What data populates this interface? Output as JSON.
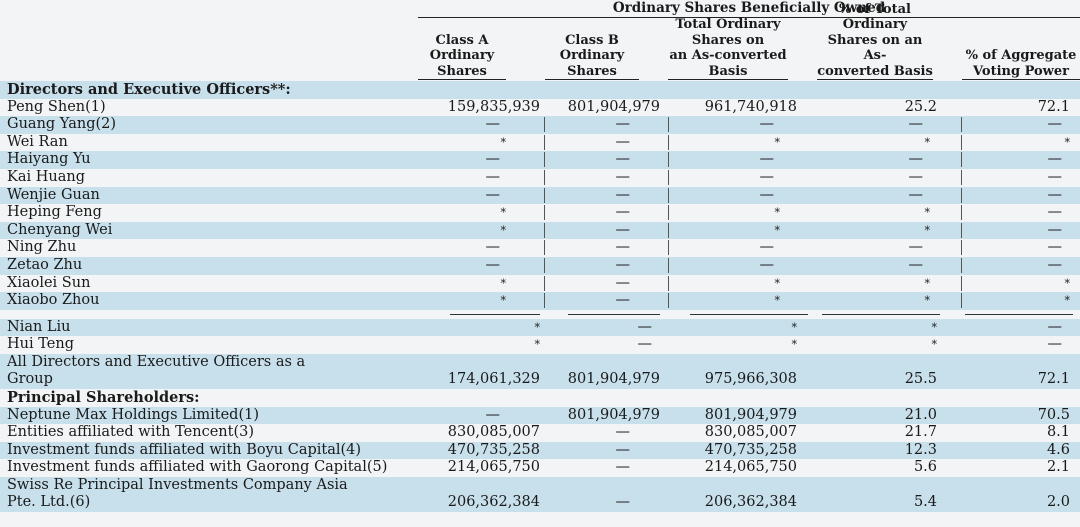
{
  "table": {
    "super_header": "Ordinary Shares Beneficially Owned",
    "columns": [
      {
        "id": "class_a",
        "lines": [
          "Class A",
          "Ordinary",
          "Shares"
        ]
      },
      {
        "id": "class_b",
        "lines": [
          "Class B",
          "Ordinary",
          "Shares"
        ]
      },
      {
        "id": "total",
        "lines": [
          "Total Ordinary",
          "Shares on",
          "an As-converted",
          "Basis"
        ]
      },
      {
        "id": "pct_total",
        "lines": [
          "% of Total",
          "Ordinary",
          "Shares on an As-",
          "converted Basis"
        ]
      },
      {
        "id": "pct_vote",
        "lines": [
          "% of Aggregate",
          "Voting Power"
        ]
      }
    ],
    "section_directors": "Directors and Executive Officers**:",
    "directors": [
      {
        "name": "Peng Shen(1)",
        "a": "159,835,939",
        "b": "801,904,979",
        "t": "961,740,918",
        "p": "25.2",
        "v": "72.1"
      },
      {
        "name": "Guang Yang(2)",
        "a": "—",
        "b": "—",
        "t": "—",
        "p": "—",
        "v": "—"
      },
      {
        "name": "Wei Ran",
        "a": "*",
        "b": "—",
        "t": "*",
        "p": "*",
        "v": "*"
      },
      {
        "name": "Haiyang Yu",
        "a": "—",
        "b": "—",
        "t": "—",
        "p": "—",
        "v": "—"
      },
      {
        "name": "Kai Huang",
        "a": "—",
        "b": "—",
        "t": "—",
        "p": "—",
        "v": "—"
      },
      {
        "name": "Wenjie Guan",
        "a": "—",
        "b": "—",
        "t": "—",
        "p": "—",
        "v": "—"
      },
      {
        "name": "Heping Feng",
        "a": "*",
        "b": "—",
        "t": "*",
        "p": "*",
        "v": "—"
      },
      {
        "name": "Chenyang Wei",
        "a": "*",
        "b": "—",
        "t": "*",
        "p": "*",
        "v": "—"
      },
      {
        "name": "Ning Zhu",
        "a": "—",
        "b": "—",
        "t": "—",
        "p": "—",
        "v": "—"
      },
      {
        "name": "Zetao Zhu",
        "a": "—",
        "b": "—",
        "t": "—",
        "p": "—",
        "v": "—"
      },
      {
        "name": "Xiaolei Sun",
        "a": "*",
        "b": "—",
        "t": "*",
        "p": "*",
        "v": "*"
      },
      {
        "name": "Xiaobo Zhou",
        "a": "*",
        "b": "—",
        "t": "*",
        "p": "*",
        "v": "*"
      }
    ],
    "directors_cont": [
      {
        "name": "Nian Liu",
        "a": "*",
        "b": "—",
        "t": "*",
        "p": "*",
        "v": "—"
      },
      {
        "name": "Hui Teng",
        "a": "*",
        "b": "—",
        "t": "*",
        "p": "*",
        "v": "—"
      }
    ],
    "group_row": {
      "name_line1": "All Directors and Executive Officers as a",
      "name_line2": "Group",
      "a": "174,061,329",
      "b": "801,904,979",
      "t": "975,966,308",
      "p": "25.5",
      "v": "72.1"
    },
    "section_principal": "Principal Shareholders:",
    "principal": [
      {
        "name": "Neptune Max Holdings Limited(1)",
        "a": "—",
        "b": "801,904,979",
        "t": "801,904,979",
        "p": "21.0",
        "v": "70.5"
      },
      {
        "name": "Entities affiliated with Tencent(3)",
        "a": "830,085,007",
        "b": "—",
        "t": "830,085,007",
        "p": "21.7",
        "v": "8.1"
      },
      {
        "name": "Investment funds affiliated with Boyu Capital(4)",
        "a": "470,735,258",
        "b": "—",
        "t": "470,735,258",
        "p": "12.3",
        "v": "4.6"
      },
      {
        "name": "Investment funds affiliated with Gaorong Capital(5)",
        "a": "214,065,750",
        "b": "—",
        "t": "214,065,750",
        "p": "5.6",
        "v": "2.1"
      }
    ],
    "swiss_row": {
      "name_line1": "Swiss Re Principal Investments Company Asia",
      "name_line2": "Pte. Ltd.(6)",
      "a": "206,362,384",
      "b": "—",
      "t": "206,362,384",
      "p": "5.4",
      "v": "2.0"
    }
  }
}
